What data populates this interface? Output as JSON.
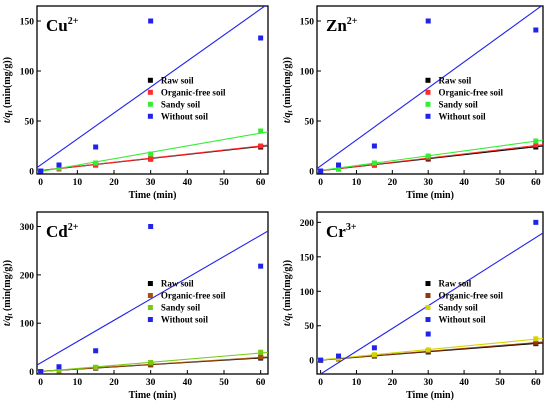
{
  "figure": {
    "panels": [
      {
        "ion": "Cu",
        "charge": "2+"
      },
      {
        "ion": "Zn",
        "charge": "2+"
      },
      {
        "ion": "Cd",
        "charge": "2+"
      },
      {
        "ion": "Cr",
        "charge": "3+"
      }
    ]
  },
  "chart_data": [
    {
      "type": "scatter",
      "title": "Cu2+",
      "xlabel": "Time (min)",
      "ylabel": "t/qt (min(mg/g))",
      "xlim": [
        -1,
        62
      ],
      "ylim": [
        -3,
        165
      ],
      "xticks": [
        0,
        10,
        20,
        30,
        40,
        50,
        60
      ],
      "yticks": [
        0,
        50,
        100,
        150
      ],
      "legend_position": "center-right",
      "x": [
        0,
        5,
        15,
        30,
        60
      ],
      "series": [
        {
          "name": "Raw soil",
          "color": "#000000",
          "values": [
            0,
            2,
            6,
            12,
            24
          ],
          "fit": [
            0.5,
            0.4
          ]
        },
        {
          "name": "Organic-free soil",
          "color": "#ff2a2a",
          "values": [
            0,
            2,
            6.3,
            12.5,
            25
          ],
          "fit": [
            0.5,
            0.41
          ]
        },
        {
          "name": "Sandy soil",
          "color": "#33ee33",
          "values": [
            0,
            3,
            8,
            17,
            40
          ],
          "fit": [
            -0.5,
            0.64
          ]
        },
        {
          "name": "Without soil",
          "color": "#2222ee",
          "values": [
            0,
            6,
            24,
            150,
            133
          ],
          "fit": [
            6,
            2.6
          ]
        }
      ]
    },
    {
      "type": "scatter",
      "title": "Zn2+",
      "xlabel": "Time (min)",
      "ylabel": "t/qt (min(mg/g))",
      "xlim": [
        -1,
        62
      ],
      "ylim": [
        -3,
        165
      ],
      "xticks": [
        0,
        10,
        20,
        30,
        40,
        50,
        60
      ],
      "yticks": [
        0,
        50,
        100,
        150
      ],
      "legend_position": "center-right",
      "x": [
        0,
        5,
        15,
        30,
        60
      ],
      "series": [
        {
          "name": "Raw soil",
          "color": "#000000",
          "values": [
            0,
            2,
            6,
            12,
            24
          ],
          "fit": [
            0.3,
            0.4
          ]
        },
        {
          "name": "Organic-free soil",
          "color": "#ff2a2a",
          "values": [
            0,
            2,
            6.5,
            13,
            26
          ],
          "fit": [
            0.3,
            0.42
          ]
        },
        {
          "name": "Sandy soil",
          "color": "#33ee33",
          "values": [
            0,
            2.5,
            8,
            15,
            30
          ],
          "fit": [
            0.5,
            0.49
          ]
        },
        {
          "name": "Without soil",
          "color": "#2222ee",
          "values": [
            0,
            6,
            25,
            150,
            141
          ],
          "fit": [
            5,
            2.6
          ]
        }
      ]
    },
    {
      "type": "scatter",
      "title": "Cd2+",
      "xlabel": "Time (min)",
      "ylabel": "t/qt (min(mg/g))",
      "xlim": [
        -1,
        62
      ],
      "ylim": [
        -5,
        330
      ],
      "xticks": [
        0,
        10,
        20,
        30,
        40,
        50,
        60
      ],
      "yticks": [
        0,
        100,
        200,
        300
      ],
      "legend_position": "center-right",
      "x": [
        0,
        5,
        15,
        30,
        60
      ],
      "series": [
        {
          "name": "Raw soil",
          "color": "#000000",
          "values": [
            0,
            2,
            7,
            14,
            28
          ],
          "fit": [
            0.5,
            0.46
          ]
        },
        {
          "name": "Organic-free soil",
          "color": "#a5520f",
          "values": [
            0,
            2,
            7.5,
            15,
            30
          ],
          "fit": [
            0.5,
            0.48
          ]
        },
        {
          "name": "Sandy soil",
          "color": "#77cc11",
          "values": [
            0,
            3,
            9,
            19,
            40
          ],
          "fit": [
            0,
            0.64
          ]
        },
        {
          "name": "Without soil",
          "color": "#2222ee",
          "values": [
            0,
            10,
            43,
            300,
            218
          ],
          "fit": [
            18,
            4.4
          ]
        }
      ]
    },
    {
      "type": "scatter",
      "title": "Cr3+",
      "xlabel": "Time (min)",
      "ylabel": "t/qt (min(mg/g))",
      "xlim": [
        -1,
        62
      ],
      "ylim": [
        -20,
        215
      ],
      "xticks": [
        0,
        10,
        20,
        30,
        40,
        50,
        60
      ],
      "yticks": [
        0,
        50,
        100,
        150,
        200
      ],
      "legend_position": "center-right",
      "x": [
        0,
        5,
        15,
        30,
        60
      ],
      "series": [
        {
          "name": "Raw soil",
          "color": "#000000",
          "values": [
            0,
            2,
            6,
            12,
            24
          ],
          "fit": [
            0.3,
            0.4
          ]
        },
        {
          "name": "Organic-free soil",
          "color": "#8b3a0e",
          "values": [
            0,
            2,
            6.5,
            13,
            25
          ],
          "fit": [
            0.3,
            0.42
          ]
        },
        {
          "name": "Sandy soil",
          "color": "#d4d400",
          "values": [
            0,
            3,
            8,
            15,
            31
          ],
          "fit": [
            0.5,
            0.5
          ]
        },
        {
          "name": "Without soil",
          "color": "#2222ee",
          "values": [
            0,
            6,
            18,
            38,
            200
          ],
          "fit": [
            -20,
            3.3
          ]
        }
      ]
    }
  ]
}
